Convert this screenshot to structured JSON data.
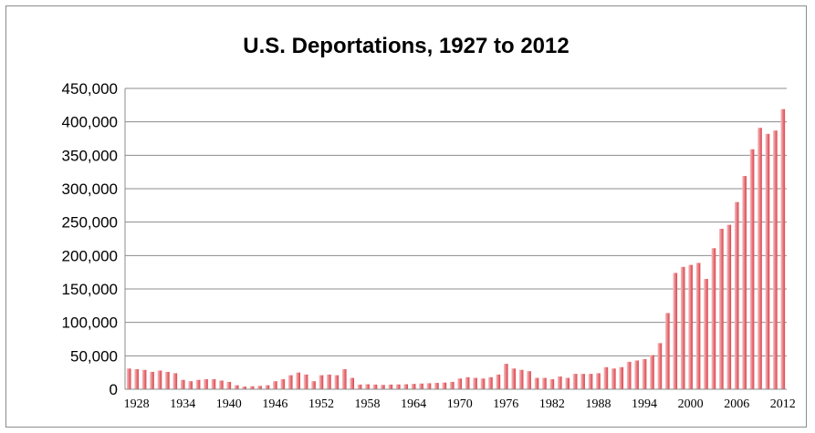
{
  "chart_data": {
    "type": "bar",
    "title": "U.S. Deportations, 1927 to 2012",
    "xlabel": "",
    "ylabel": "",
    "ylim": [
      0,
      450000
    ],
    "yticks": [
      "0",
      "50,000",
      "100,000",
      "150,000",
      "200,000",
      "250,000",
      "300,000",
      "350,000",
      "400,000",
      "450,000"
    ],
    "xtick_labels": [
      "1928",
      "1934",
      "1940",
      "1946",
      "1952",
      "1958",
      "1964",
      "1970",
      "1976",
      "1982",
      "1988",
      "1994",
      "2000",
      "2006",
      "2012"
    ],
    "grid": true,
    "legend": "none",
    "bar_color": "#d9434a",
    "categories": [
      1927,
      1928,
      1929,
      1930,
      1931,
      1932,
      1933,
      1934,
      1935,
      1936,
      1937,
      1938,
      1939,
      1940,
      1941,
      1942,
      1943,
      1944,
      1945,
      1946,
      1947,
      1948,
      1949,
      1950,
      1951,
      1952,
      1953,
      1954,
      1955,
      1956,
      1957,
      1958,
      1959,
      1960,
      1961,
      1962,
      1963,
      1964,
      1965,
      1966,
      1967,
      1968,
      1969,
      1970,
      1971,
      1972,
      1973,
      1974,
      1975,
      1976,
      1977,
      1978,
      1979,
      1980,
      1981,
      1982,
      1983,
      1984,
      1985,
      1986,
      1987,
      1988,
      1989,
      1990,
      1991,
      1992,
      1993,
      1994,
      1995,
      1996,
      1997,
      1998,
      1999,
      2000,
      2001,
      2002,
      2003,
      2004,
      2005,
      2006,
      2007,
      2008,
      2009,
      2010,
      2011,
      2012
    ],
    "values": [
      31000,
      30000,
      29000,
      26000,
      28000,
      26000,
      24000,
      14000,
      12000,
      14000,
      15000,
      15000,
      13000,
      11000,
      6000,
      4000,
      4500,
      5000,
      6000,
      12000,
      15000,
      21000,
      25000,
      22000,
      12000,
      21000,
      22000,
      21000,
      30000,
      17000,
      7000,
      7500,
      7000,
      6500,
      7000,
      7200,
      7500,
      8000,
      8500,
      9000,
      9500,
      10000,
      11000,
      16000,
      18000,
      17000,
      16000,
      18000,
      22000,
      38000,
      31000,
      29000,
      27000,
      17000,
      17000,
      15000,
      19000,
      17000,
      23000,
      23000,
      23000,
      24000,
      33000,
      31000,
      33000,
      41000,
      43000,
      45000,
      51000,
      69000,
      114000,
      174000,
      183000,
      186000,
      189000,
      165000,
      211000,
      240000,
      246000,
      280000,
      319000,
      359000,
      391000,
      382000,
      387000,
      419000
    ]
  }
}
